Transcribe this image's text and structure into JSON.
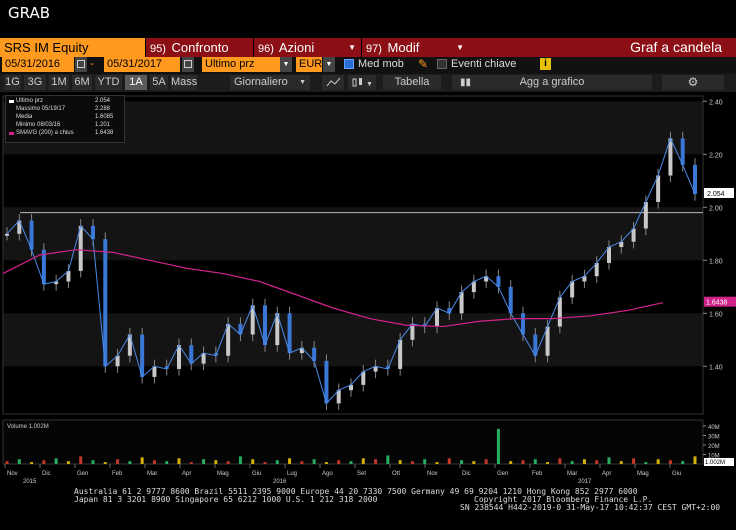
{
  "window": {
    "title": "GRAB"
  },
  "toolbar": {
    "ticker": "SRS IM Equity",
    "menus": [
      {
        "num": "95)",
        "label": "Confronto"
      },
      {
        "num": "96)",
        "label": "Azioni"
      },
      {
        "num": "97)",
        "label": "Modif"
      }
    ],
    "chart_title": "Graf a candela"
  },
  "params": {
    "start_date": "05/31/2016",
    "end_date": "05/31/2017",
    "price_field": "Ultimo prz",
    "currency": "EUR",
    "moving_avg_label": "Med mob",
    "moving_avg_checked": true,
    "key_events_label": "Eventi chiave",
    "key_events_checked": false,
    "info_icon": "i"
  },
  "periods": {
    "items": [
      "1G",
      "3G",
      "1M",
      "6M",
      "YTD",
      "1A",
      "5A",
      "Mass"
    ],
    "active": "1A",
    "frequency": "Giornaliero",
    "table_label": "Tabella",
    "add_label": "Agg a grafico"
  },
  "legend": {
    "rows": [
      {
        "name": "Ultimo prz",
        "value": "2.054"
      },
      {
        "name": "Massimo 05/19/17",
        "value": "2.288"
      },
      {
        "name": "Media",
        "value": "1.6085"
      },
      {
        "name": "Minimo 08/03/16",
        "value": "1.201"
      },
      {
        "name": "SMAVG (200) a chius",
        "value": "1.6438"
      }
    ],
    "sma_color": "#d0238a"
  },
  "chart_data": {
    "type": "line",
    "price_axis": {
      "ticks": [
        "2.40",
        "2.20",
        "2.00",
        "1.80",
        "1.60",
        "1.40"
      ],
      "range": [
        1.22,
        2.42
      ]
    },
    "price_marker": "2.054",
    "sma_marker": "1.6438",
    "reference_level": 1.98,
    "volume_axis": {
      "ticks": [
        "40M",
        "30M",
        "20M",
        "10M"
      ],
      "marker": "1.002M",
      "label": "Volume 1.002M"
    },
    "x_months": [
      "Nov",
      "Dic",
      "Gen",
      "Feb",
      "Mar",
      "Apr",
      "Mag",
      "Giu",
      "Lug",
      "Ago",
      "Set",
      "Ott",
      "Nov",
      "Dic",
      "Gen",
      "Feb",
      "Mar",
      "Apr",
      "Mag",
      "Giu"
    ],
    "x_years": [
      "2015",
      "2016",
      "2017"
    ],
    "price_series": [
      {
        "date": "2015-11",
        "value": 1.9
      },
      {
        "date": "2015-11",
        "value": 1.95
      },
      {
        "date": "2015-12",
        "value": 1.84
      },
      {
        "date": "2015-12",
        "value": 1.71
      },
      {
        "date": "2015-12",
        "value": 1.72
      },
      {
        "date": "2016-01",
        "value": 1.76
      },
      {
        "date": "2016-01",
        "value": 1.93
      },
      {
        "date": "2016-01",
        "value": 1.88
      },
      {
        "date": "2016-02",
        "value": 1.4
      },
      {
        "date": "2016-02",
        "value": 1.44
      },
      {
        "date": "2016-02",
        "value": 1.52
      },
      {
        "date": "2016-03",
        "value": 1.36
      },
      {
        "date": "2016-03",
        "value": 1.4
      },
      {
        "date": "2016-03",
        "value": 1.39
      },
      {
        "date": "2016-04",
        "value": 1.48
      },
      {
        "date": "2016-04",
        "value": 1.41
      },
      {
        "date": "2016-04",
        "value": 1.45
      },
      {
        "date": "2016-05",
        "value": 1.44
      },
      {
        "date": "2016-05",
        "value": 1.56
      },
      {
        "date": "2016-05",
        "value": 1.52
      },
      {
        "date": "2016-06",
        "value": 1.63
      },
      {
        "date": "2016-06",
        "value": 1.48
      },
      {
        "date": "2016-06",
        "value": 1.6
      },
      {
        "date": "2016-07",
        "value": 1.45
      },
      {
        "date": "2016-07",
        "value": 1.47
      },
      {
        "date": "2016-07",
        "value": 1.42
      },
      {
        "date": "2016-08",
        "value": 1.26
      },
      {
        "date": "2016-08",
        "value": 1.31
      },
      {
        "date": "2016-08",
        "value": 1.33
      },
      {
        "date": "2016-09",
        "value": 1.38
      },
      {
        "date": "2016-09",
        "value": 1.4
      },
      {
        "date": "2016-09",
        "value": 1.39
      },
      {
        "date": "2016-10",
        "value": 1.5
      },
      {
        "date": "2016-10",
        "value": 1.56
      },
      {
        "date": "2016-10",
        "value": 1.55
      },
      {
        "date": "2016-11",
        "value": 1.62
      },
      {
        "date": "2016-11",
        "value": 1.6
      },
      {
        "date": "2016-11",
        "value": 1.68
      },
      {
        "date": "2016-12",
        "value": 1.72
      },
      {
        "date": "2016-12",
        "value": 1.74
      },
      {
        "date": "2016-12",
        "value": 1.7
      },
      {
        "date": "2017-01",
        "value": 1.6
      },
      {
        "date": "2017-01",
        "value": 1.52
      },
      {
        "date": "2017-01",
        "value": 1.44
      },
      {
        "date": "2017-02",
        "value": 1.55
      },
      {
        "date": "2017-02",
        "value": 1.66
      },
      {
        "date": "2017-02",
        "value": 1.72
      },
      {
        "date": "2017-03",
        "value": 1.74
      },
      {
        "date": "2017-03",
        "value": 1.79
      },
      {
        "date": "2017-03",
        "value": 1.85
      },
      {
        "date": "2017-04",
        "value": 1.87
      },
      {
        "date": "2017-04",
        "value": 1.92
      },
      {
        "date": "2017-04",
        "value": 2.02
      },
      {
        "date": "2017-05",
        "value": 2.12
      },
      {
        "date": "2017-05",
        "value": 2.26
      },
      {
        "date": "2017-05",
        "value": 2.16
      },
      {
        "date": "2017-05",
        "value": 2.05
      }
    ],
    "sma_series": [
      {
        "date": "2015-11",
        "value": 1.75
      },
      {
        "date": "2015-12",
        "value": 1.82
      },
      {
        "date": "2016-01",
        "value": 1.84
      },
      {
        "date": "2016-02",
        "value": 1.83
      },
      {
        "date": "2016-03",
        "value": 1.8
      },
      {
        "date": "2016-04",
        "value": 1.77
      },
      {
        "date": "2016-05",
        "value": 1.75
      },
      {
        "date": "2016-06",
        "value": 1.72
      },
      {
        "date": "2016-07",
        "value": 1.67
      },
      {
        "date": "2016-08",
        "value": 1.62
      },
      {
        "date": "2016-09",
        "value": 1.58
      },
      {
        "date": "2016-10",
        "value": 1.555
      },
      {
        "date": "2016-11",
        "value": 1.55
      },
      {
        "date": "2016-12",
        "value": 1.57
      },
      {
        "date": "2017-01",
        "value": 1.58
      },
      {
        "date": "2017-02",
        "value": 1.58
      },
      {
        "date": "2017-03",
        "value": 1.59
      },
      {
        "date": "2017-04",
        "value": 1.61
      },
      {
        "date": "2017-05",
        "value": 1.64
      }
    ],
    "volume_millions": [
      3,
      5,
      2,
      4,
      6,
      3,
      8,
      4,
      2,
      5,
      3,
      7,
      4,
      3,
      6,
      2,
      5,
      4,
      3,
      8,
      5,
      2,
      4,
      6,
      3,
      5,
      2,
      4,
      3,
      6,
      5,
      9,
      4,
      3,
      5,
      2,
      6,
      4,
      3,
      5,
      37,
      3,
      4,
      5,
      2,
      6,
      3,
      5,
      4,
      7,
      3,
      6,
      2,
      5,
      4,
      3,
      8
    ]
  },
  "footer": {
    "line1": "Australia 61 2 9777 8600 Brazil 5511 2395 9000 Europe 44 20 7330 7500 Germany 49 69 9204 1210 Hong Kong 852 2977 6000",
    "line2a": "Japan 81 3 3201 8900      Singapore 65 6212 1000      U.S. 1 212 318 2000",
    "line2b": "Copyright 2017 Bloomberg Finance L.P.",
    "line3": "SN 238544 H442-2019-0 31-May-17 10:42:37 CEST GMT+2:00"
  }
}
